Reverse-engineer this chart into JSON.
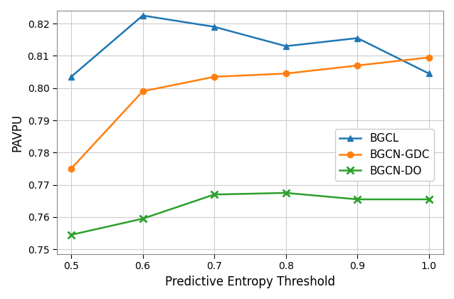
{
  "x": [
    0.5,
    0.6,
    0.7,
    0.8,
    0.9,
    1.0
  ],
  "bgcl": [
    0.8035,
    0.8225,
    0.819,
    0.813,
    0.8155,
    0.8045
  ],
  "bgcn_gdc": [
    0.775,
    0.799,
    0.8035,
    0.8045,
    0.807,
    0.8095
  ],
  "bgcn_do": [
    0.7545,
    0.7595,
    0.767,
    0.7675,
    0.7655,
    0.7655
  ],
  "bgcl_color": "#1f77b4",
  "bgcn_gdc_color": "#ff7f0e",
  "bgcn_do_color": "#2ca02c",
  "xlabel": "Predictive Entropy Threshold",
  "ylabel": "PAVPU",
  "ylim": [
    0.7485,
    0.824
  ],
  "xlim": [
    0.48,
    1.02
  ],
  "legend_labels": [
    "BGCL",
    "BGCN-GDC",
    "BGCN-DO"
  ],
  "yticks": [
    0.75,
    0.76,
    0.77,
    0.78,
    0.79,
    0.8,
    0.81,
    0.82
  ],
  "xticks": [
    0.5,
    0.6,
    0.7,
    0.8,
    0.9,
    1.0
  ],
  "background_color": "#ffffff",
  "grid_color": "#cccccc"
}
